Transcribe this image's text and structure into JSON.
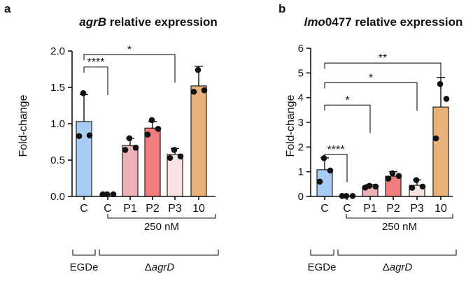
{
  "chart_data": [
    {
      "panel": "a",
      "type": "bar",
      "title_italic": "agrB",
      "title_rest": " relative expression",
      "ylabel": "Fold-change",
      "ylim": [
        0,
        2.0
      ],
      "yticks": [
        0.0,
        0.5,
        1.0,
        1.5,
        2.0
      ],
      "ytick_labels": [
        "0.0",
        "0.5",
        "1.0",
        "1.5",
        "2.0"
      ],
      "categories": [
        "C",
        "C",
        "P1",
        "P2",
        "P3",
        "10"
      ],
      "colors": [
        "#a9cdf2",
        "#7dc27d",
        "#ebb1b5",
        "#f07c7e",
        "#f8e2e2",
        "#e8b27a"
      ],
      "values": [
        1.03,
        0.03,
        0.7,
        0.94,
        0.58,
        1.52
      ],
      "errors": [
        0.37,
        0.0,
        0.1,
        0.09,
        0.08,
        0.27
      ],
      "points": [
        [
          1.42,
          0.84,
          0.83
        ],
        [
          0.03,
          0.03,
          0.03
        ],
        [
          0.8,
          0.67,
          0.64
        ],
        [
          1.05,
          0.93,
          0.85
        ],
        [
          0.64,
          0.55,
          0.53
        ],
        [
          1.74,
          1.46,
          1.44
        ]
      ],
      "comparisons": [
        {
          "from": 0,
          "to": 1,
          "label": "****",
          "y": 1.78
        },
        {
          "from": 0,
          "to": 4,
          "label": "*",
          "y": 1.95
        }
      ],
      "group_label": "250 nM",
      "egde_label": "EGDe",
      "mutant_prefix": "Δ",
      "mutant_italic": "agrD"
    },
    {
      "panel": "b",
      "type": "bar",
      "title_italic": "lmo",
      "title_rest": "0477 relative expression",
      "ylabel": "Fold-change",
      "ylim": [
        0,
        6
      ],
      "yticks": [
        0,
        1,
        2,
        3,
        4,
        5,
        6
      ],
      "ytick_labels": [
        "0",
        "1",
        "2",
        "3",
        "4",
        "5",
        "6"
      ],
      "categories": [
        "C",
        "C",
        "P1",
        "P2",
        "P3",
        "10"
      ],
      "colors": [
        "#a9cdf2",
        "#7dc27d",
        "#ebb1b5",
        "#f07c7e",
        "#f8e2e2",
        "#e8b27a"
      ],
      "values": [
        1.08,
        0.02,
        0.4,
        0.82,
        0.45,
        3.62
      ],
      "errors": [
        0.48,
        0.0,
        0.08,
        0.18,
        0.22,
        1.2
      ],
      "points": [
        [
          1.55,
          1.05,
          0.6
        ],
        [
          0.02,
          0.02,
          0.02
        ],
        [
          0.43,
          0.4,
          0.36
        ],
        [
          0.94,
          0.83,
          0.72
        ],
        [
          0.66,
          0.4,
          0.35
        ],
        [
          4.55,
          3.95,
          2.35
        ]
      ],
      "comparisons": [
        {
          "from": 0,
          "to": 1,
          "label": "****",
          "y": 1.7
        },
        {
          "from": 0,
          "to": 2,
          "label": "*",
          "y": 3.7
        },
        {
          "from": 0,
          "to": 4,
          "label": "*",
          "y": 4.6
        },
        {
          "from": 0,
          "to": 5,
          "label": "**",
          "y": 5.4
        }
      ],
      "group_label": "250 nM",
      "egde_label": "EGDe",
      "mutant_prefix": "Δ",
      "mutant_italic": "agrD"
    }
  ]
}
